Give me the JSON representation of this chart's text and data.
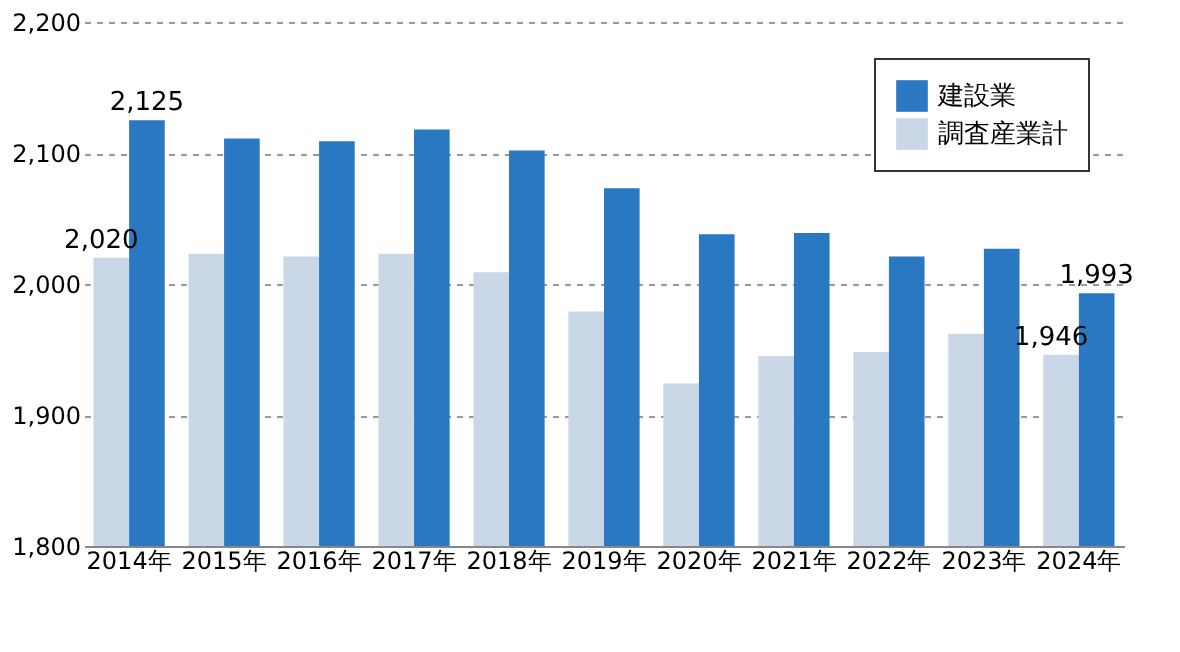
{
  "chart_data": {
    "type": "bar",
    "categories": [
      "2014年",
      "2015年",
      "2016年",
      "2017年",
      "2018年",
      "2019年",
      "2020年",
      "2021年",
      "2022年",
      "2023年",
      "2024年"
    ],
    "series": [
      {
        "name": "調査産業計",
        "color": "#c9d7e6",
        "values": [
          2020,
          2023,
          2021,
          2023,
          2009,
          1979,
          1924,
          1945,
          1948,
          1962,
          1946
        ],
        "value_labels": [
          "2,020",
          null,
          null,
          null,
          null,
          null,
          null,
          null,
          null,
          null,
          "1,946"
        ]
      },
      {
        "name": "建設業",
        "color": "#2a78c2",
        "values": [
          2125,
          2111,
          2109,
          2118,
          2102,
          2073,
          2038,
          2039,
          2021,
          2027,
          1993
        ],
        "value_labels": [
          "2,125",
          null,
          null,
          null,
          null,
          null,
          null,
          null,
          null,
          null,
          "1,993"
        ]
      }
    ],
    "ylim": [
      1800,
      2200
    ],
    "yticks": [
      {
        "value": 1800,
        "label": "1,800"
      },
      {
        "value": 1900,
        "label": "1,900"
      },
      {
        "value": 2000,
        "label": "2,000"
      },
      {
        "value": 2100,
        "label": "2,100"
      },
      {
        "value": 2200,
        "label": "2,200"
      }
    ],
    "grid": "y",
    "legend": "top right"
  }
}
